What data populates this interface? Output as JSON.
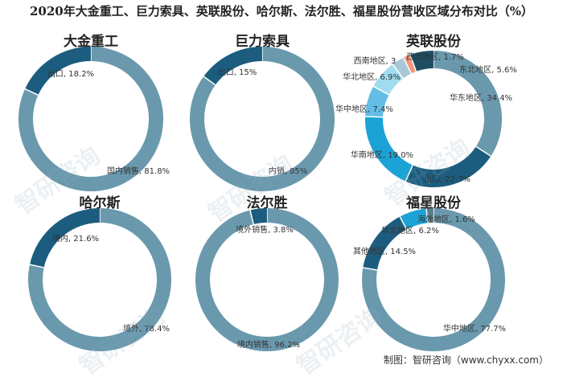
{
  "title": "2020年大金重工、巨力索具、英联股份、哈尔斯、法尔胜、福星股份营收区域分布对比（%）",
  "source": "制图：智研咨询（www.chyxx.com）",
  "watermark": "智研咨询",
  "colors": {
    "primary": "#6a99ae",
    "dark": "#1c5d7f",
    "slices": [
      "#6a99ae",
      "#1c5d7f",
      "#1ba3d6",
      "#63bde6",
      "#9fdcef",
      "#a8c8d6",
      "#f2957a",
      "#1f4e63",
      "#5d7c8a"
    ]
  },
  "chart_data": [
    {
      "type": "pie",
      "title": "大金重工",
      "labels": [
        "国内销售",
        "出口"
      ],
      "values": [
        81.8,
        18.2
      ],
      "label_text": [
        "国内销售, 81.8%",
        "出口, 18.2%"
      ]
    },
    {
      "type": "pie",
      "title": "巨力索具",
      "labels": [
        "内销",
        "出口"
      ],
      "values": [
        85,
        15
      ],
      "label_text": [
        "内销, 85%",
        "出口, 15%"
      ]
    },
    {
      "type": "pie",
      "title": "英联股份",
      "labels": [
        "华东地区",
        "出口",
        "华南地区",
        "华中地区",
        "华北地区",
        "西南地区",
        "西北地区",
        "东北地区"
      ],
      "values": [
        34.4,
        22.7,
        19.0,
        7.4,
        6.9,
        3.0,
        1.7,
        5.6
      ],
      "label_text": [
        "华东地区, 34.4%",
        "出口, 22.7%",
        "华南地区, 19.0%",
        "华中地区, 7.4%",
        "华北地区, 6.9%",
        "西南地区, 3",
        "西北地区, 1.7%",
        "东北地区, 5.6%"
      ]
    },
    {
      "type": "pie",
      "title": "哈尔斯",
      "labels": [
        "境外",
        "境内"
      ],
      "values": [
        78.4,
        21.6
      ],
      "label_text": [
        "境外, 78.4%",
        "境内, 21.6%"
      ]
    },
    {
      "type": "pie",
      "title": "法尔胜",
      "labels": [
        "境内销售",
        "境外销售"
      ],
      "values": [
        96.2,
        3.8
      ],
      "label_text": [
        "境内销售, 96.2%",
        "境外销售, 3.8%"
      ]
    },
    {
      "type": "pie",
      "title": "福星股份",
      "labels": [
        "华中地区",
        "其他地区",
        "华北地区",
        "海外地区"
      ],
      "values": [
        77.7,
        14.5,
        6.2,
        1.6
      ],
      "label_text": [
        "华中地区, 77.7%",
        "其他地区, 14.5%",
        "华北地区, 6.2%",
        "海外地区, 1.6%"
      ]
    }
  ]
}
